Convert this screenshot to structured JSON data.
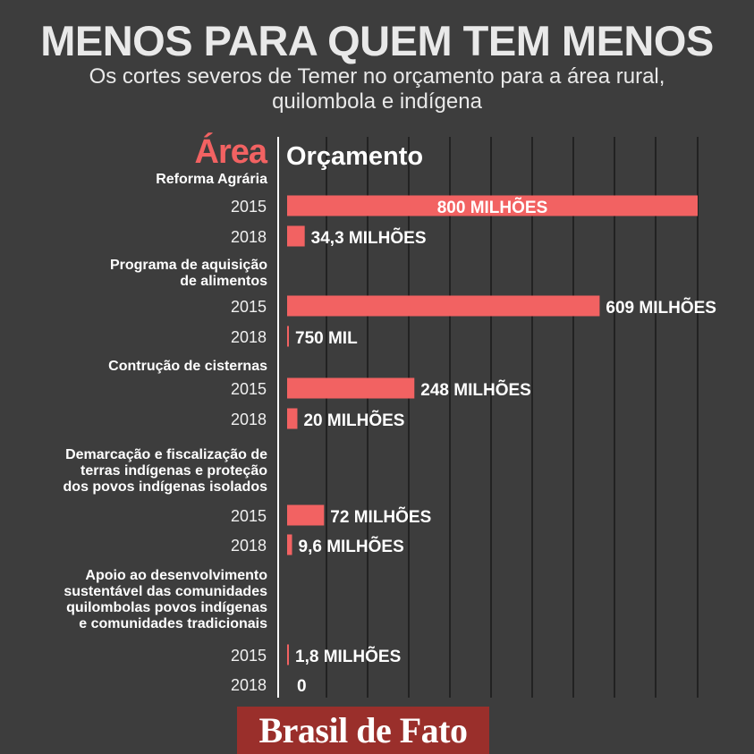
{
  "title": "MENOS PARA QUEM TEM MENOS",
  "subtitle_line1": "Os cortes severos de Temer no orçamento para a área rural,",
  "subtitle_line2": "quilombola e indígena",
  "footer": {
    "logo_text": "Brasil de Fato"
  },
  "colors": {
    "background": "#3d3d3d",
    "bar": "#f26262",
    "accent_heading": "#f26262",
    "text": "#ffffff",
    "gridline": "#222222",
    "logo_background": "#9a2f2b"
  },
  "chart_data": {
    "type": "bar",
    "orientation": "horizontal",
    "unit": "R$ (milhões)",
    "xlim": [
      0,
      800
    ],
    "grid": true,
    "legend": "none",
    "category_header": "Área",
    "value_header": "Orçamento",
    "groups": [
      {
        "label_lines": [
          "Reforma Agrária"
        ],
        "bars": [
          {
            "year": "2015",
            "value": 800,
            "label": "800 MILHÕES",
            "label_inside": true
          },
          {
            "year": "2018",
            "value": 34.3,
            "label": "34,3 MILHÕES"
          }
        ]
      },
      {
        "label_lines": [
          "Programa de aquisição",
          "de alimentos"
        ],
        "bars": [
          {
            "year": "2015",
            "value": 609,
            "label": "609 MILHÕES"
          },
          {
            "year": "2018",
            "value": 0.75,
            "label": "750 MIL"
          }
        ]
      },
      {
        "label_lines": [
          "Contrução de cisternas"
        ],
        "bars": [
          {
            "year": "2015",
            "value": 248,
            "label": "248 MILHÕES"
          },
          {
            "year": "2018",
            "value": 20,
            "label": "20 MILHÕES"
          }
        ]
      },
      {
        "label_lines": [
          "Demarcação e fiscalização  de",
          "terras indígenas e proteção",
          "dos povos indígenas isolados"
        ],
        "bars": [
          {
            "year": "2015",
            "value": 72,
            "label": "72 MILHÕES"
          },
          {
            "year": "2018",
            "value": 9.6,
            "label": "9,6 MILHÕES"
          }
        ]
      },
      {
        "label_lines": [
          "Apoio ao desenvolvimento",
          "sustentável das comunidades",
          "quilombolas povos indígenas",
          "e comunidades tradicionais"
        ],
        "bars": [
          {
            "year": "2015",
            "value": 1.8,
            "label": "1,8 MILHÕES"
          },
          {
            "year": "2018",
            "value": 0,
            "label": "0"
          }
        ]
      }
    ]
  }
}
